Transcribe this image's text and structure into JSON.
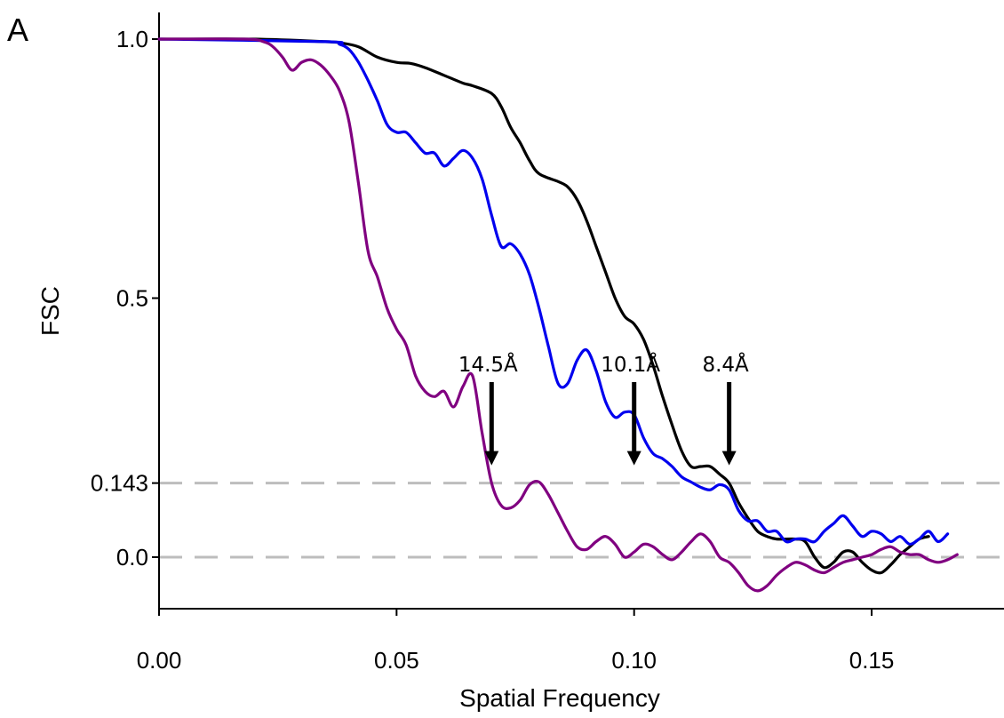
{
  "panel_label": "A",
  "chart_data": {
    "type": "line",
    "xlabel": "Spatial Frequency",
    "ylabel": "FSC",
    "xlim": [
      0.0,
      0.175
    ],
    "ylim": [
      -0.1,
      1.05
    ],
    "x_ticks": [
      "0.00",
      "0.05",
      "0.10",
      "0.15"
    ],
    "x_tick_values": [
      0.0,
      0.05,
      0.1,
      0.15
    ],
    "y_ticks": [
      "1.0",
      "0.5",
      "0.143",
      "0.0"
    ],
    "y_tick_values": [
      1.0,
      0.5,
      0.143,
      0.0
    ],
    "reference_lines": [
      0.143,
      0.0
    ],
    "grid": false,
    "series": [
      {
        "color": "#000000",
        "points": [
          [
            0.0,
            1.0
          ],
          [
            0.02,
            1.0
          ],
          [
            0.035,
            0.995
          ],
          [
            0.038,
            0.993
          ],
          [
            0.042,
            0.985
          ],
          [
            0.046,
            0.965
          ],
          [
            0.05,
            0.955
          ],
          [
            0.053,
            0.953
          ],
          [
            0.056,
            0.945
          ],
          [
            0.06,
            0.93
          ],
          [
            0.064,
            0.915
          ],
          [
            0.066,
            0.91
          ],
          [
            0.07,
            0.895
          ],
          [
            0.072,
            0.87
          ],
          [
            0.074,
            0.83
          ],
          [
            0.076,
            0.8
          ],
          [
            0.078,
            0.765
          ],
          [
            0.08,
            0.74
          ],
          [
            0.084,
            0.725
          ],
          [
            0.086,
            0.715
          ],
          [
            0.088,
            0.69
          ],
          [
            0.09,
            0.65
          ],
          [
            0.092,
            0.6
          ],
          [
            0.094,
            0.55
          ],
          [
            0.096,
            0.5
          ],
          [
            0.098,
            0.465
          ],
          [
            0.1,
            0.45
          ],
          [
            0.102,
            0.42
          ],
          [
            0.104,
            0.37
          ],
          [
            0.106,
            0.31
          ],
          [
            0.108,
            0.255
          ],
          [
            0.11,
            0.205
          ],
          [
            0.112,
            0.175
          ],
          [
            0.114,
            0.175
          ],
          [
            0.116,
            0.175
          ],
          [
            0.118,
            0.16
          ],
          [
            0.12,
            0.143
          ],
          [
            0.122,
            0.105
          ],
          [
            0.124,
            0.075
          ],
          [
            0.126,
            0.05
          ],
          [
            0.128,
            0.04
          ],
          [
            0.13,
            0.035
          ],
          [
            0.134,
            0.035
          ],
          [
            0.136,
            0.03
          ],
          [
            0.138,
            0.0
          ],
          [
            0.14,
            -0.02
          ],
          [
            0.142,
            -0.01
          ],
          [
            0.144,
            0.01
          ],
          [
            0.146,
            0.01
          ],
          [
            0.148,
            -0.01
          ],
          [
            0.15,
            -0.025
          ],
          [
            0.152,
            -0.03
          ],
          [
            0.154,
            -0.015
          ],
          [
            0.156,
            0.005
          ],
          [
            0.158,
            0.02
          ],
          [
            0.16,
            0.035
          ],
          [
            0.162,
            0.04
          ]
        ]
      },
      {
        "color": "#0000ee",
        "points": [
          [
            0.0,
            1.0
          ],
          [
            0.035,
            0.995
          ],
          [
            0.038,
            0.99
          ],
          [
            0.04,
            0.98
          ],
          [
            0.042,
            0.955
          ],
          [
            0.044,
            0.92
          ],
          [
            0.046,
            0.88
          ],
          [
            0.048,
            0.835
          ],
          [
            0.05,
            0.82
          ],
          [
            0.052,
            0.82
          ],
          [
            0.054,
            0.8
          ],
          [
            0.056,
            0.78
          ],
          [
            0.058,
            0.78
          ],
          [
            0.06,
            0.755
          ],
          [
            0.062,
            0.77
          ],
          [
            0.064,
            0.785
          ],
          [
            0.066,
            0.77
          ],
          [
            0.068,
            0.73
          ],
          [
            0.07,
            0.66
          ],
          [
            0.072,
            0.6
          ],
          [
            0.074,
            0.605
          ],
          [
            0.076,
            0.585
          ],
          [
            0.078,
            0.545
          ],
          [
            0.08,
            0.48
          ],
          [
            0.082,
            0.405
          ],
          [
            0.084,
            0.335
          ],
          [
            0.086,
            0.335
          ],
          [
            0.088,
            0.38
          ],
          [
            0.09,
            0.4
          ],
          [
            0.092,
            0.36
          ],
          [
            0.094,
            0.3
          ],
          [
            0.096,
            0.27
          ],
          [
            0.098,
            0.28
          ],
          [
            0.1,
            0.275
          ],
          [
            0.102,
            0.23
          ],
          [
            0.104,
            0.2
          ],
          [
            0.106,
            0.19
          ],
          [
            0.108,
            0.175
          ],
          [
            0.11,
            0.155
          ],
          [
            0.112,
            0.145
          ],
          [
            0.114,
            0.135
          ],
          [
            0.116,
            0.13
          ],
          [
            0.118,
            0.14
          ],
          [
            0.12,
            0.13
          ],
          [
            0.122,
            0.09
          ],
          [
            0.124,
            0.07
          ],
          [
            0.126,
            0.07
          ],
          [
            0.128,
            0.05
          ],
          [
            0.13,
            0.05
          ],
          [
            0.132,
            0.03
          ],
          [
            0.134,
            0.035
          ],
          [
            0.136,
            0.035
          ],
          [
            0.138,
            0.03
          ],
          [
            0.14,
            0.05
          ],
          [
            0.142,
            0.065
          ],
          [
            0.144,
            0.08
          ],
          [
            0.146,
            0.06
          ],
          [
            0.148,
            0.04
          ],
          [
            0.15,
            0.05
          ],
          [
            0.152,
            0.045
          ],
          [
            0.154,
            0.03
          ],
          [
            0.156,
            0.04
          ],
          [
            0.158,
            0.025
          ],
          [
            0.16,
            0.035
          ],
          [
            0.162,
            0.05
          ],
          [
            0.164,
            0.03
          ],
          [
            0.166,
            0.045
          ]
        ]
      },
      {
        "color": "#800080",
        "points": [
          [
            0.0,
            1.0
          ],
          [
            0.018,
            1.0
          ],
          [
            0.022,
            0.995
          ],
          [
            0.024,
            0.985
          ],
          [
            0.026,
            0.965
          ],
          [
            0.028,
            0.94
          ],
          [
            0.03,
            0.955
          ],
          [
            0.032,
            0.96
          ],
          [
            0.034,
            0.95
          ],
          [
            0.036,
            0.93
          ],
          [
            0.038,
            0.9
          ],
          [
            0.04,
            0.84
          ],
          [
            0.042,
            0.72
          ],
          [
            0.044,
            0.59
          ],
          [
            0.046,
            0.54
          ],
          [
            0.048,
            0.48
          ],
          [
            0.05,
            0.44
          ],
          [
            0.052,
            0.41
          ],
          [
            0.054,
            0.35
          ],
          [
            0.056,
            0.32
          ],
          [
            0.058,
            0.31
          ],
          [
            0.06,
            0.32
          ],
          [
            0.062,
            0.29
          ],
          [
            0.064,
            0.33
          ],
          [
            0.066,
            0.35
          ],
          [
            0.068,
            0.24
          ],
          [
            0.07,
            0.143
          ],
          [
            0.072,
            0.1
          ],
          [
            0.074,
            0.095
          ],
          [
            0.076,
            0.11
          ],
          [
            0.078,
            0.14
          ],
          [
            0.08,
            0.145
          ],
          [
            0.082,
            0.12
          ],
          [
            0.084,
            0.085
          ],
          [
            0.086,
            0.05
          ],
          [
            0.088,
            0.02
          ],
          [
            0.09,
            0.015
          ],
          [
            0.092,
            0.03
          ],
          [
            0.094,
            0.04
          ],
          [
            0.096,
            0.025
          ],
          [
            0.098,
            0.0
          ],
          [
            0.1,
            0.01
          ],
          [
            0.102,
            0.025
          ],
          [
            0.104,
            0.02
          ],
          [
            0.106,
            0.005
          ],
          [
            0.108,
            -0.005
          ],
          [
            0.11,
            0.01
          ],
          [
            0.112,
            0.03
          ],
          [
            0.114,
            0.045
          ],
          [
            0.116,
            0.03
          ],
          [
            0.118,
            0.0
          ],
          [
            0.12,
            -0.01
          ],
          [
            0.122,
            -0.03
          ],
          [
            0.124,
            -0.055
          ],
          [
            0.126,
            -0.065
          ],
          [
            0.128,
            -0.055
          ],
          [
            0.13,
            -0.035
          ],
          [
            0.132,
            -0.02
          ],
          [
            0.134,
            -0.01
          ],
          [
            0.136,
            -0.015
          ],
          [
            0.138,
            -0.025
          ],
          [
            0.14,
            -0.03
          ],
          [
            0.142,
            -0.02
          ],
          [
            0.144,
            -0.01
          ],
          [
            0.146,
            -0.005
          ],
          [
            0.148,
            0.0
          ],
          [
            0.15,
            0.005
          ],
          [
            0.152,
            0.015
          ],
          [
            0.154,
            0.02
          ],
          [
            0.156,
            0.01
          ],
          [
            0.158,
            0.005
          ],
          [
            0.16,
            0.005
          ],
          [
            0.162,
            -0.005
          ],
          [
            0.164,
            -0.01
          ],
          [
            0.166,
            -0.005
          ],
          [
            0.168,
            0.005
          ]
        ]
      }
    ],
    "annotations": [
      {
        "text": "14.5Å",
        "x": 0.07,
        "y": 0.143
      },
      {
        "text": "10.1Å",
        "x": 0.1,
        "y": 0.143
      },
      {
        "text": "8.4Å",
        "x": 0.12,
        "y": 0.143
      }
    ]
  }
}
